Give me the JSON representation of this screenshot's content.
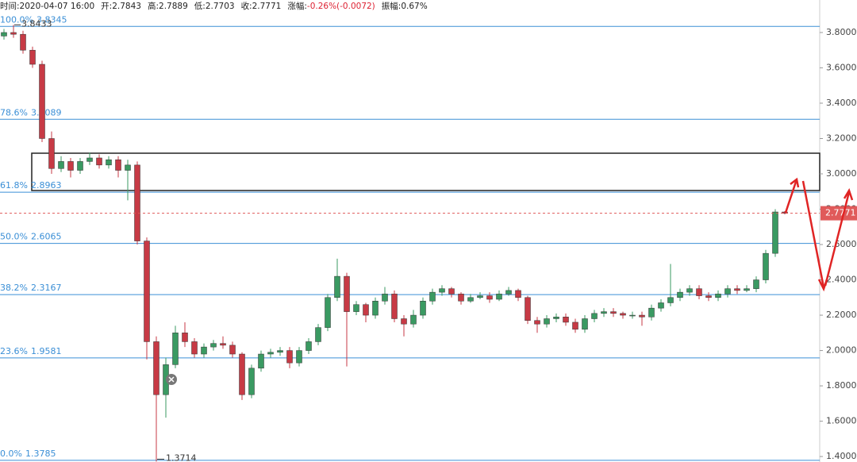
{
  "header": [
    {
      "label": "时间:",
      "value": "2020-04-07 16:00"
    },
    {
      "label": "开:",
      "value": "2.7843"
    },
    {
      "label": "高:",
      "value": "2.7889"
    },
    {
      "label": "低:",
      "value": "2.7703"
    },
    {
      "label": "收:",
      "value": "2.7771"
    },
    {
      "label": "涨幅:",
      "value": "-0.26%(-0.0072)"
    },
    {
      "label": "振幅:",
      "value": "0.67%"
    }
  ],
  "chart_data": {
    "type": "candlestick",
    "open": [
      3.78,
      3.8,
      3.79,
      3.7,
      3.62,
      3.2,
      3.03,
      3.07,
      3.02,
      3.07,
      3.09,
      3.05,
      3.08,
      3.02,
      3.05,
      2.62,
      2.05,
      1.75,
      1.92,
      2.1,
      2.05,
      1.98,
      2.02,
      2.04,
      2.03,
      1.98,
      1.75,
      1.9,
      1.98,
      1.99,
      2.0,
      1.93,
      2.0,
      2.05,
      2.13,
      2.3,
      2.42,
      2.22,
      2.26,
      2.2,
      2.28,
      2.32,
      2.18,
      2.15,
      2.2,
      2.28,
      2.33,
      2.35,
      2.32,
      2.28,
      2.3,
      2.31,
      2.29,
      2.32,
      2.34,
      2.3,
      2.17,
      2.15,
      2.18,
      2.19,
      2.16,
      2.12,
      2.18,
      2.21,
      2.22,
      2.21,
      2.2,
      2.2,
      2.19,
      2.24,
      2.27,
      2.3,
      2.33,
      2.35,
      2.31,
      2.3,
      2.32,
      2.35,
      2.34,
      2.35,
      2.4,
      2.55,
      2.7843
    ],
    "high": [
      3.82,
      3.8433,
      3.81,
      3.72,
      3.64,
      3.24,
      3.1,
      3.09,
      3.09,
      3.12,
      3.11,
      3.1,
      3.1,
      3.08,
      3.07,
      2.64,
      2.08,
      1.96,
      2.14,
      2.16,
      2.07,
      2.04,
      2.06,
      2.08,
      2.05,
      1.99,
      1.92,
      2.0,
      2.01,
      2.02,
      2.02,
      2.02,
      2.07,
      2.15,
      2.32,
      2.52,
      2.44,
      2.28,
      2.27,
      2.3,
      2.36,
      2.34,
      2.2,
      2.23,
      2.3,
      2.35,
      2.37,
      2.36,
      2.33,
      2.32,
      2.33,
      2.33,
      2.34,
      2.36,
      2.35,
      2.31,
      2.19,
      2.2,
      2.21,
      2.21,
      2.18,
      2.2,
      2.23,
      2.24,
      2.24,
      2.22,
      2.22,
      2.22,
      2.26,
      2.29,
      2.49,
      2.35,
      2.37,
      2.37,
      2.33,
      2.34,
      2.37,
      2.37,
      2.37,
      2.42,
      2.57,
      2.8,
      2.7889
    ],
    "low": [
      3.76,
      3.77,
      3.68,
      3.6,
      3.18,
      3.0,
      3.01,
      2.98,
      3.0,
      3.05,
      3.03,
      3.03,
      2.98,
      2.85,
      2.6,
      1.95,
      1.3714,
      1.62,
      1.9,
      2.02,
      1.96,
      1.96,
      2.0,
      2.01,
      1.96,
      1.72,
      1.73,
      1.88,
      1.96,
      1.97,
      1.9,
      1.91,
      1.98,
      2.03,
      2.11,
      2.28,
      1.91,
      2.2,
      2.16,
      2.18,
      2.26,
      2.16,
      2.08,
      2.13,
      2.18,
      2.26,
      2.31,
      2.3,
      2.26,
      2.27,
      2.29,
      2.27,
      2.28,
      2.31,
      2.28,
      2.15,
      2.1,
      2.13,
      2.16,
      2.14,
      2.1,
      2.1,
      2.16,
      2.19,
      2.19,
      2.18,
      2.18,
      2.14,
      2.17,
      2.22,
      2.25,
      2.28,
      2.31,
      2.29,
      2.28,
      2.28,
      2.3,
      2.32,
      2.33,
      2.33,
      2.38,
      2.53,
      2.7703
    ],
    "close": [
      3.8,
      3.79,
      3.7,
      3.62,
      3.2,
      3.03,
      3.07,
      3.02,
      3.07,
      3.09,
      3.05,
      3.08,
      3.02,
      3.05,
      2.62,
      2.05,
      1.75,
      1.92,
      2.1,
      2.05,
      1.98,
      2.02,
      2.04,
      2.03,
      1.98,
      1.75,
      1.9,
      1.98,
      1.99,
      2.0,
      1.93,
      2.0,
      2.05,
      2.13,
      2.3,
      2.42,
      2.22,
      2.26,
      2.2,
      2.28,
      2.32,
      2.18,
      2.15,
      2.2,
      2.28,
      2.33,
      2.35,
      2.32,
      2.28,
      2.3,
      2.31,
      2.29,
      2.32,
      2.34,
      2.3,
      2.17,
      2.15,
      2.18,
      2.19,
      2.16,
      2.12,
      2.18,
      2.21,
      2.22,
      2.21,
      2.2,
      2.2,
      2.19,
      2.24,
      2.27,
      2.3,
      2.33,
      2.35,
      2.31,
      2.3,
      2.32,
      2.35,
      2.34,
      2.35,
      2.4,
      2.55,
      2.7843,
      2.7771
    ],
    "up_color": "#3a9a62",
    "down_color": "#c73a45",
    "fib_color": "#3b8fd6",
    "ylim": [
      1.369,
      3.984
    ],
    "yticks": [
      {
        "value": 1.4,
        "label": "1.4000"
      },
      {
        "value": 1.6,
        "label": "1.6000"
      },
      {
        "value": 1.8,
        "label": "1.8000"
      },
      {
        "value": 2.0,
        "label": "2.0000"
      },
      {
        "value": 2.2,
        "label": "2.2000"
      },
      {
        "value": 2.4,
        "label": "2.4000"
      },
      {
        "value": 2.6,
        "label": "2.6000"
      },
      {
        "value": 2.8,
        "label": "2.8000"
      },
      {
        "value": 3.0,
        "label": "3.0000"
      },
      {
        "value": 3.2,
        "label": "3.2000"
      },
      {
        "value": 3.4,
        "label": "3.4000"
      },
      {
        "value": 3.6,
        "label": "3.6000"
      },
      {
        "value": 3.8,
        "label": "3.8000"
      }
    ],
    "fib_levels": [
      {
        "label": "100.0%",
        "value": 3.8345
      },
      {
        "label": "78.6%",
        "value": 3.3089
      },
      {
        "label": "61.8%",
        "value": 2.8963
      },
      {
        "label": "50.0%",
        "value": 2.6065
      },
      {
        "label": "38.2%",
        "value": 2.3167
      },
      {
        "label": "23.6%",
        "value": 1.9581
      },
      {
        "label": "0.0%",
        "value": 1.3785
      }
    ]
  }
}
